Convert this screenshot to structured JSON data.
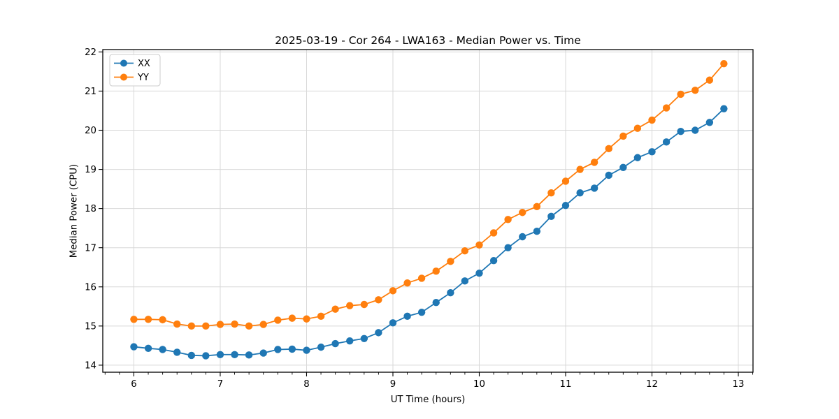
{
  "figure": {
    "title": "2025-03-19 - Cor 264 - LWA163 - Median Power vs. Time",
    "xlabel": "UT Time (hours)",
    "ylabel": "Median Power (CPU)"
  },
  "legend": {
    "position": "upper left",
    "items": [
      {
        "label": "XX",
        "color": "#1f77b4"
      },
      {
        "label": "YY",
        "color": "#ff7f0e"
      }
    ]
  },
  "chart_data": {
    "type": "line",
    "title": "2025-03-19 - Cor 264 - LWA163 - Median Power vs. Time",
    "xlabel": "UT Time (hours)",
    "ylabel": "Median Power (CPU)",
    "grid": true,
    "legend_position": "upper left",
    "marker": "o",
    "xlim": [
      5.64,
      13.17
    ],
    "ylim": [
      13.82,
      22.06
    ],
    "xticks": [
      6,
      7,
      8,
      9,
      10,
      11,
      12,
      13
    ],
    "yticks": [
      14,
      15,
      16,
      17,
      18,
      19,
      20,
      21,
      22
    ],
    "x_minor_step_hours": 0.1667,
    "x": [
      6.0,
      6.167,
      6.333,
      6.5,
      6.667,
      6.833,
      7.0,
      7.167,
      7.333,
      7.5,
      7.667,
      7.833,
      8.0,
      8.167,
      8.333,
      8.5,
      8.667,
      8.833,
      9.0,
      9.167,
      9.333,
      9.5,
      9.667,
      9.833,
      10.0,
      10.167,
      10.333,
      10.5,
      10.667,
      10.833,
      11.0,
      11.167,
      11.333,
      11.5,
      11.667,
      11.833,
      12.0,
      12.167,
      12.333,
      12.5,
      12.667,
      12.833
    ],
    "series": [
      {
        "name": "XX",
        "color": "#1f77b4",
        "values": [
          14.47,
          14.43,
          14.4,
          14.33,
          14.25,
          14.24,
          14.27,
          14.27,
          14.26,
          14.31,
          14.4,
          14.41,
          14.38,
          14.46,
          14.55,
          14.62,
          14.68,
          14.83,
          15.08,
          15.25,
          15.35,
          15.6,
          15.85,
          16.15,
          16.35,
          16.67,
          17.0,
          17.28,
          17.42,
          17.8,
          18.08,
          18.4,
          18.52,
          18.85,
          19.05,
          19.3,
          19.45,
          19.7,
          19.97,
          20.0,
          20.2,
          20.55
        ]
      },
      {
        "name": "YY",
        "color": "#ff7f0e",
        "values": [
          15.17,
          15.17,
          15.16,
          15.05,
          15.0,
          15.0,
          15.04,
          15.05,
          15.0,
          15.04,
          15.15,
          15.2,
          15.18,
          15.25,
          15.43,
          15.52,
          15.55,
          15.67,
          15.9,
          16.1,
          16.22,
          16.4,
          16.65,
          16.92,
          17.07,
          17.38,
          17.72,
          17.9,
          18.05,
          18.4,
          18.7,
          19.0,
          19.18,
          19.53,
          19.85,
          20.05,
          20.26,
          20.57,
          20.92,
          21.02,
          21.28,
          21.7
        ]
      }
    ]
  }
}
